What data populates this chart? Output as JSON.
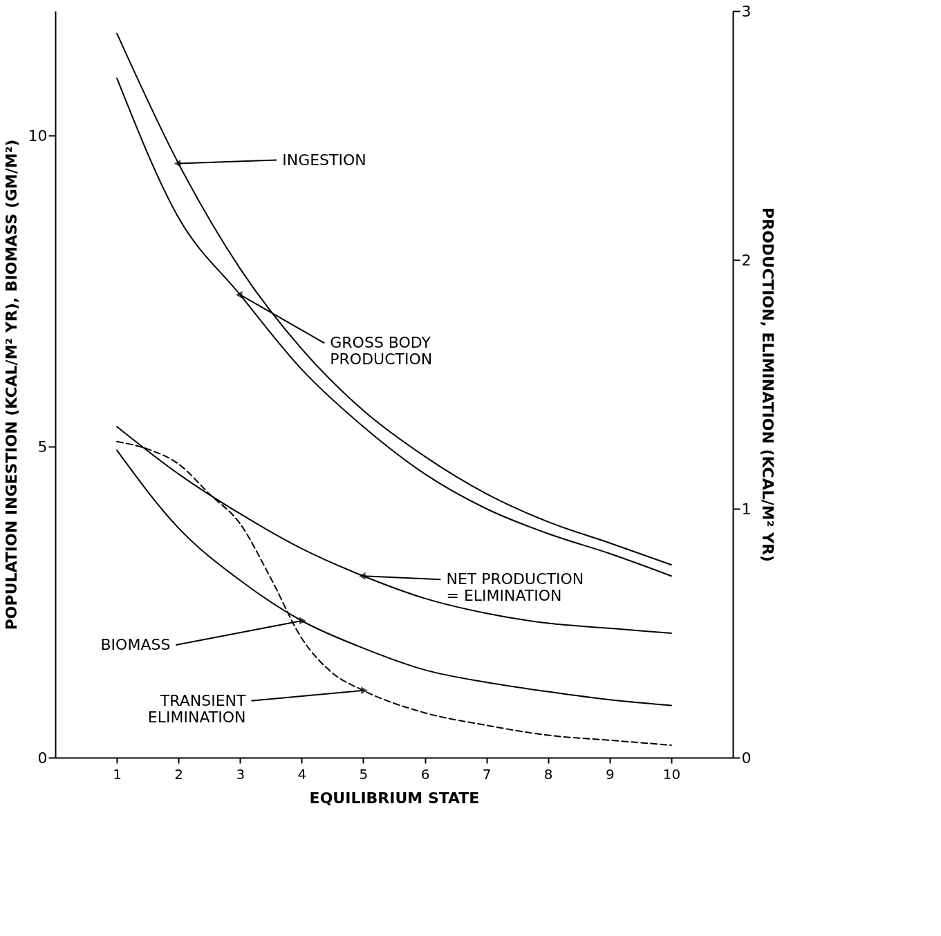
{
  "chart_data": {
    "type": "line",
    "xlabel": "EQUILIBRIUM STATE",
    "ylabel": "POPULATION INGESTION (KCAL/M² YR), BIOMASS (GM/M²)",
    "y2label": "PRODUCTION, ELIMINATION (KCAL/M² YR)",
    "xlim": [
      0,
      11
    ],
    "xticks": [
      1,
      2,
      3,
      4,
      5,
      6,
      7,
      8,
      9,
      10
    ],
    "ylim": [
      0,
      12
    ],
    "yticks": [
      0,
      5,
      10
    ],
    "y2lim": [
      0,
      3
    ],
    "y2ticks": [
      0,
      1,
      2,
      3
    ],
    "grid": false,
    "marker": "none",
    "x": [
      1,
      2,
      3,
      4,
      5,
      6,
      7,
      8,
      9,
      10
    ],
    "series": [
      {
        "name": "INGESTION",
        "color": "#000000",
        "values": [
          11.64,
          9.55,
          7.86,
          6.57,
          5.58,
          4.84,
          4.24,
          3.79,
          3.45,
          3.1
        ]
      },
      {
        "name": "GROSS BODY\nPRODUCTION",
        "color": "#000000",
        "axis": "y2",
        "values": [
          2.73,
          2.17,
          1.86,
          1.56,
          1.33,
          1.14,
          1.0,
          0.9,
          0.82,
          0.73
        ]
      },
      {
        "name": "NET PRODUCTION\n= ELIMINATION",
        "color": "#000000",
        "axis": "y2",
        "values": [
          1.33,
          1.14,
          0.98,
          0.84,
          0.73,
          0.64,
          0.58,
          0.54,
          0.52,
          0.5
        ]
      },
      {
        "name": "BIOMASS",
        "color": "#000000",
        "values": [
          4.94,
          3.69,
          2.85,
          2.2,
          1.76,
          1.41,
          1.21,
          1.06,
          0.93,
          0.84
        ]
      },
      {
        "name": "TRANSIENT\nELIMINATION",
        "color": "#000000",
        "axis": "y2",
        "line_style": "dashed",
        "x": [
          1,
          1.5,
          2,
          2.5,
          3,
          3.5,
          4,
          4.5,
          5,
          6,
          7,
          8,
          9,
          10
        ],
        "values": [
          1.27,
          1.24,
          1.18,
          1.06,
          0.94,
          0.72,
          0.48,
          0.34,
          0.27,
          0.18,
          0.13,
          0.09,
          0.07,
          0.05
        ]
      }
    ]
  }
}
